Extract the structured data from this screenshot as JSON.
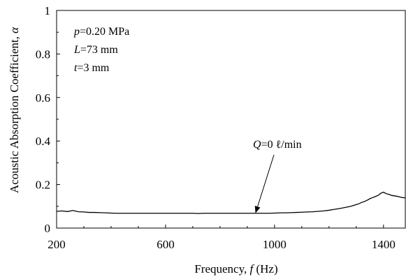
{
  "chart_data": {
    "type": "line",
    "xlabel": {
      "main": "Frequency, ",
      "sym": "f",
      "unit": " (Hz)"
    },
    "ylabel": {
      "main": "Acoustic Absorption Coefficient, ",
      "sym": "α"
    },
    "xlim": [
      200,
      1480
    ],
    "ylim": [
      0,
      1
    ],
    "x_ticks": [
      200,
      600,
      1000,
      1400
    ],
    "y_ticks": [
      0,
      0.2,
      0.4,
      0.6,
      0.8,
      1
    ],
    "y_tick_labels": [
      "0",
      "0.2",
      "0.4",
      "0.6",
      "0.8",
      "1"
    ],
    "x_tick_labels": [
      "200",
      "600",
      "1000",
      "1400"
    ],
    "grid": false,
    "params": [
      {
        "sym": "p",
        "rest": "=0.20 MPa"
      },
      {
        "sym": "L",
        "rest": "=73 mm"
      },
      {
        "sym": "t",
        "rest": "=3 mm"
      }
    ],
    "annotation": {
      "sym": "Q",
      "rest": "=0 ℓ/min",
      "arrow_to": [
        930,
        0.068
      ]
    },
    "series": [
      {
        "x": [
          200,
          220,
          240,
          260,
          280,
          300,
          320,
          340,
          360,
          380,
          400,
          420,
          440,
          460,
          480,
          500,
          520,
          540,
          560,
          580,
          600,
          620,
          640,
          660,
          680,
          700,
          720,
          740,
          760,
          780,
          800,
          820,
          840,
          860,
          880,
          900,
          920,
          940,
          960,
          980,
          1000,
          1020,
          1040,
          1060,
          1080,
          1100,
          1120,
          1140,
          1160,
          1180,
          1200,
          1220,
          1240,
          1260,
          1280,
          1300,
          1310,
          1320,
          1330,
          1340,
          1350,
          1360,
          1370,
          1380,
          1390,
          1400,
          1410,
          1420,
          1430,
          1440,
          1450,
          1460,
          1470,
          1480
        ],
        "y": [
          0.077,
          0.079,
          0.076,
          0.081,
          0.075,
          0.074,
          0.072,
          0.072,
          0.071,
          0.07,
          0.069,
          0.068,
          0.068,
          0.068,
          0.068,
          0.068,
          0.068,
          0.068,
          0.068,
          0.068,
          0.068,
          0.068,
          0.068,
          0.068,
          0.068,
          0.068,
          0.067,
          0.068,
          0.068,
          0.068,
          0.068,
          0.068,
          0.068,
          0.068,
          0.068,
          0.068,
          0.068,
          0.068,
          0.068,
          0.068,
          0.069,
          0.07,
          0.07,
          0.071,
          0.072,
          0.073,
          0.074,
          0.075,
          0.077,
          0.079,
          0.082,
          0.086,
          0.09,
          0.095,
          0.1,
          0.108,
          0.112,
          0.118,
          0.122,
          0.128,
          0.135,
          0.14,
          0.145,
          0.15,
          0.16,
          0.165,
          0.158,
          0.155,
          0.15,
          0.148,
          0.146,
          0.143,
          0.14,
          0.139
        ]
      }
    ]
  }
}
